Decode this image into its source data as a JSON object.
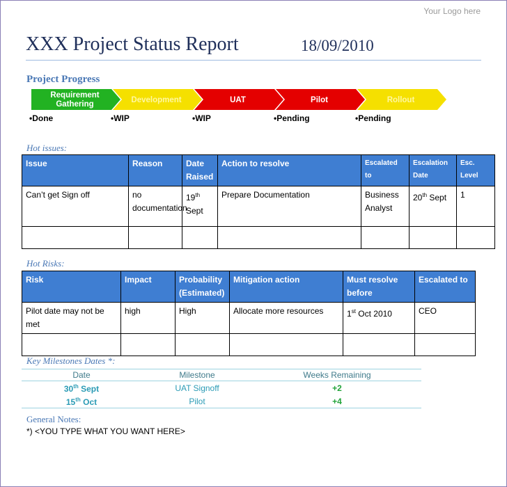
{
  "logo": "Your Logo here",
  "header": {
    "title": "XXX Project Status Report",
    "date": "18/09/2010"
  },
  "progress": {
    "title": "Project Progress",
    "stages": [
      {
        "label": "Requirement Gathering",
        "status": "•Done",
        "color": "#22b222",
        "text_color": "#ffffff"
      },
      {
        "label": "Development",
        "status": "•WIP",
        "color": "#f5e000",
        "text_color": "#fff7a0"
      },
      {
        "label": "UAT",
        "status": "•WIP",
        "color": "#e40000",
        "text_color": "#ffffff"
      },
      {
        "label": "Pilot",
        "status": "•Pending",
        "color": "#e40000",
        "text_color": "#ffffff"
      },
      {
        "label": "Rollout",
        "status": "•Pending",
        "color": "#f5e000",
        "text_color": "#fff7a0"
      }
    ]
  },
  "issues": {
    "title": "Hot issues:",
    "header": [
      "Issue",
      "Reason",
      "Date Raised",
      "Action to resolve",
      "Escalated to",
      "Escalation Date",
      "Esc. Level"
    ],
    "rows": [
      [
        "Can’t get Sign off",
        "no documentation",
        {
          "text": "19",
          "sup": "th",
          "after": "Sept"
        },
        "Prepare Documentation",
        "Business Analyst",
        {
          "text": "20",
          "sup": "th",
          "after": "Sept"
        },
        "1"
      ]
    ]
  },
  "risks": {
    "title": "Hot Risks:",
    "header": [
      "Risk",
      "Impact",
      "Probability (Estimated)",
      "Mitigation action",
      "Must resolve before",
      "Escalated to"
    ],
    "rows": [
      [
        "Pilot date may not be met",
        "high",
        "High",
        "Allocate more resources",
        {
          "text": "1",
          "sup": "st",
          "after": "Oct 2010"
        },
        "CEO"
      ]
    ]
  },
  "milestones": {
    "title": "Key Milestones Dates *:",
    "header": [
      "Date",
      "Milestone",
      "Weeks Remaining"
    ],
    "rows": [
      [
        {
          "text": "30",
          "sup": "th",
          "after": "Sept"
        },
        "UAT Signoff",
        "+2"
      ],
      [
        {
          "text": "15",
          "sup": "th",
          "after": "Oct"
        },
        "Pilot",
        "+4"
      ]
    ]
  },
  "notes": {
    "title": "General Notes:",
    "text": "*) <YOU TYPE WHAT YOU WANT HERE>"
  }
}
